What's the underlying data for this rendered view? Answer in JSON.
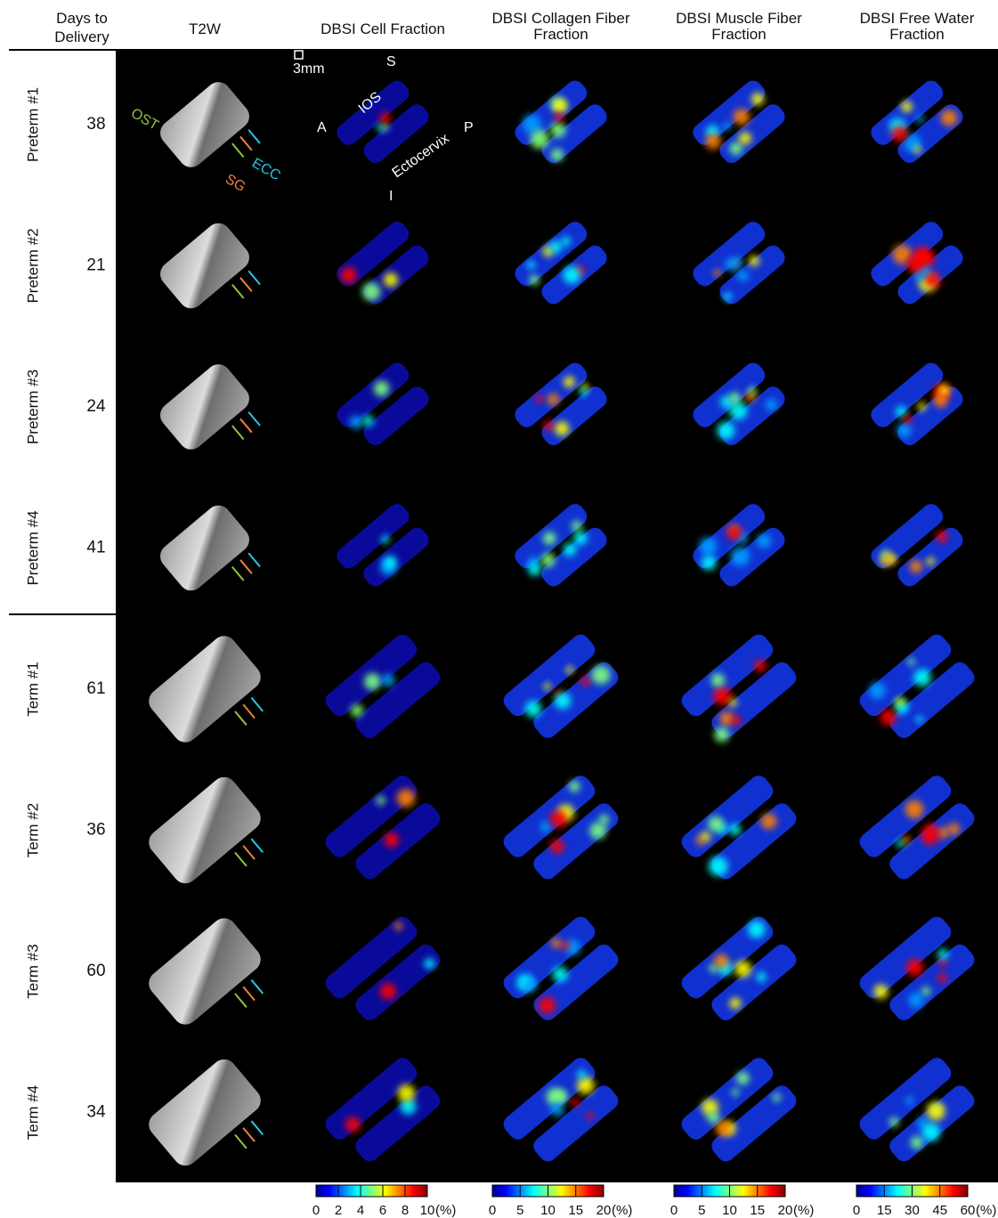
{
  "header": {
    "days_label": [
      "Days to",
      "Delivery"
    ],
    "columns": [
      [
        "T2W"
      ],
      [
        "DBSI Cell Fraction"
      ],
      [
        "DBSI Collagen Fiber",
        "Fraction"
      ],
      [
        "DBSI Muscle Fiber",
        "Fraction"
      ],
      [
        "DBSI Free Water",
        "Fraction"
      ]
    ]
  },
  "rows": [
    {
      "label": "Preterm #1",
      "days": 38
    },
    {
      "label": "Preterm #2",
      "days": 21
    },
    {
      "label": "Preterm #3",
      "days": 24
    },
    {
      "label": "Preterm #4",
      "days": 41
    },
    {
      "label": "Term #1",
      "days": 61
    },
    {
      "label": "Term #2",
      "days": 36
    },
    {
      "label": "Term #3",
      "days": 60
    },
    {
      "label": "Term #4",
      "days": 34
    }
  ],
  "annotations": {
    "scale": "3mm",
    "superior": "S",
    "anterior": "A",
    "posterior": "P",
    "inferior": "I",
    "ios": "IOS",
    "ectocervix": "Ectocervix",
    "ost": "OST",
    "ecc": "ECC",
    "sg": "SG"
  },
  "colorbars": [
    {
      "ticks": [
        0,
        2,
        4,
        6,
        8,
        10
      ],
      "unit": "(%)"
    },
    {
      "ticks": [
        0,
        5,
        10,
        15,
        20
      ],
      "unit": "(%)"
    },
    {
      "ticks": [
        0,
        5,
        10,
        15,
        20
      ],
      "unit": "(%)"
    },
    {
      "ticks": [
        0,
        15,
        30,
        45,
        60
      ],
      "unit": "(%)"
    }
  ]
}
